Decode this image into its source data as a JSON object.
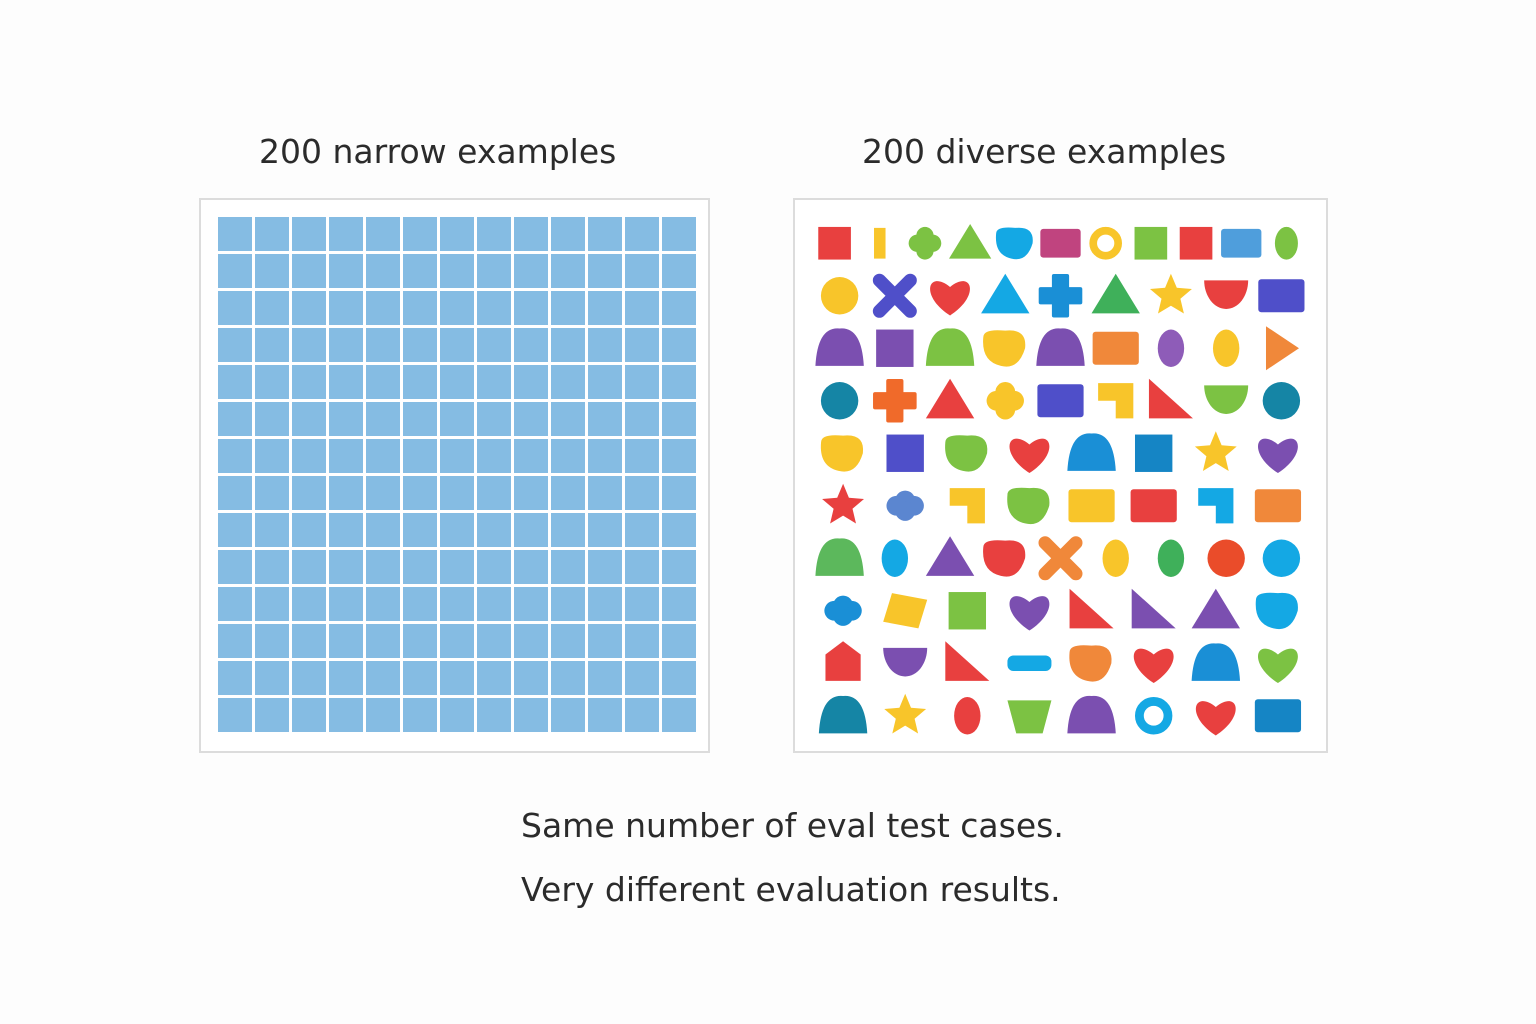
{
  "left_panel": {
    "title": "200 narrow examples",
    "grid_columns": 13,
    "grid_rows": 14,
    "cell_color": "#85bce3"
  },
  "right_panel": {
    "title": "200  diverse examples",
    "shape_rows": [
      [
        [
          "square",
          "#e8403f"
        ],
        [
          "bar",
          "#f8c52a"
        ],
        [
          "clover",
          "#7cc243"
        ],
        [
          "triangle",
          "#7cc243"
        ],
        [
          "blob",
          "#14a8e4"
        ],
        [
          "rect",
          "#c0447f"
        ],
        [
          "ring",
          "#f8c52a"
        ],
        [
          "square",
          "#7cc243"
        ],
        [
          "square",
          "#e8403f"
        ],
        [
          "rect",
          "#4f9edc"
        ],
        [
          "oval",
          "#7cc243"
        ]
      ],
      [
        [
          "circle",
          "#f8c52a"
        ],
        [
          "x",
          "#4f4fc9"
        ],
        [
          "heart",
          "#e8403f"
        ],
        [
          "triangle",
          "#14a8e4"
        ],
        [
          "plus",
          "#1a8fd6"
        ],
        [
          "triangle",
          "#3fb05a"
        ],
        [
          "star",
          "#f8c52a"
        ],
        [
          "semicircle",
          "#e8403f"
        ],
        [
          "rect",
          "#4f4fc9"
        ]
      ],
      [
        [
          "dome",
          "#7b4fb0"
        ],
        [
          "square",
          "#7b4fb0"
        ],
        [
          "dome",
          "#7cc243"
        ],
        [
          "blob",
          "#f8c52a"
        ],
        [
          "dome",
          "#7b4fb0"
        ],
        [
          "rect",
          "#f0883a"
        ],
        [
          "oval",
          "#8e5cb8"
        ],
        [
          "oval",
          "#f8c52a"
        ],
        [
          "triangle-right",
          "#f0883a"
        ]
      ],
      [
        [
          "circle",
          "#1585a5"
        ],
        [
          "plus",
          "#f06a2a"
        ],
        [
          "triangle",
          "#e8403f"
        ],
        [
          "clover",
          "#f8c52a"
        ],
        [
          "rect",
          "#4f4fc9"
        ],
        [
          "l-shape",
          "#f8c52a"
        ],
        [
          "right-triangle",
          "#e8403f"
        ],
        [
          "semicircle",
          "#7cc243"
        ],
        [
          "circle",
          "#1585a5"
        ]
      ],
      [
        [
          "blob",
          "#f8c52a"
        ],
        [
          "square",
          "#4f4fc9"
        ],
        [
          "blob",
          "#7cc243"
        ],
        [
          "heart",
          "#e8403f"
        ],
        [
          "dome",
          "#1a8fd6"
        ],
        [
          "square",
          "#1585c5"
        ],
        [
          "star",
          "#f8c52a"
        ],
        [
          "heart",
          "#7b4fb0"
        ]
      ],
      [
        [
          "star",
          "#e8403f"
        ],
        [
          "cloud",
          "#5b86d0"
        ],
        [
          "l-shape",
          "#f8c52a"
        ],
        [
          "blob",
          "#7cc243"
        ],
        [
          "rect",
          "#f8c52a"
        ],
        [
          "rect",
          "#e8403f"
        ],
        [
          "l-shape",
          "#14a8e4"
        ],
        [
          "rect",
          "#f0883a"
        ]
      ],
      [
        [
          "dome",
          "#5cb85c"
        ],
        [
          "oval",
          "#14a8e4"
        ],
        [
          "triangle",
          "#7b4fb0"
        ],
        [
          "blob",
          "#e8403f"
        ],
        [
          "x",
          "#f0883a"
        ],
        [
          "oval",
          "#f8c52a"
        ],
        [
          "oval",
          "#3fb05a"
        ],
        [
          "circle",
          "#ea4c2a"
        ],
        [
          "circle",
          "#14a8e4"
        ]
      ],
      [
        [
          "cloud",
          "#1a8fd6"
        ],
        [
          "diamond",
          "#f8c52a"
        ],
        [
          "square",
          "#7cc243"
        ],
        [
          "heart",
          "#7b4fb0"
        ],
        [
          "right-triangle",
          "#e8403f"
        ],
        [
          "right-triangle",
          "#7b4fb0"
        ],
        [
          "triangle",
          "#7b4fb0"
        ],
        [
          "blob",
          "#14a8e4"
        ]
      ],
      [
        [
          "house",
          "#e8403f"
        ],
        [
          "semicircle",
          "#7b4fb0"
        ],
        [
          "right-triangle",
          "#e8403f"
        ],
        [
          "bar-h",
          "#14a8e4"
        ],
        [
          "blob",
          "#f0883a"
        ],
        [
          "heart",
          "#e8403f"
        ],
        [
          "dome",
          "#1a8fd6"
        ],
        [
          "heart",
          "#7cc243"
        ]
      ],
      [
        [
          "dome",
          "#1585a5"
        ],
        [
          "star",
          "#f8c52a"
        ],
        [
          "oval",
          "#e8403f"
        ],
        [
          "cup",
          "#7cc243"
        ],
        [
          "dome",
          "#7b4fb0"
        ],
        [
          "ring",
          "#14a8e4"
        ],
        [
          "heart",
          "#e8403f"
        ],
        [
          "rect",
          "#1585c5"
        ]
      ]
    ]
  },
  "caption": {
    "line1": "Same number of eval test cases.",
    "line2": "Very different evaluation results."
  }
}
